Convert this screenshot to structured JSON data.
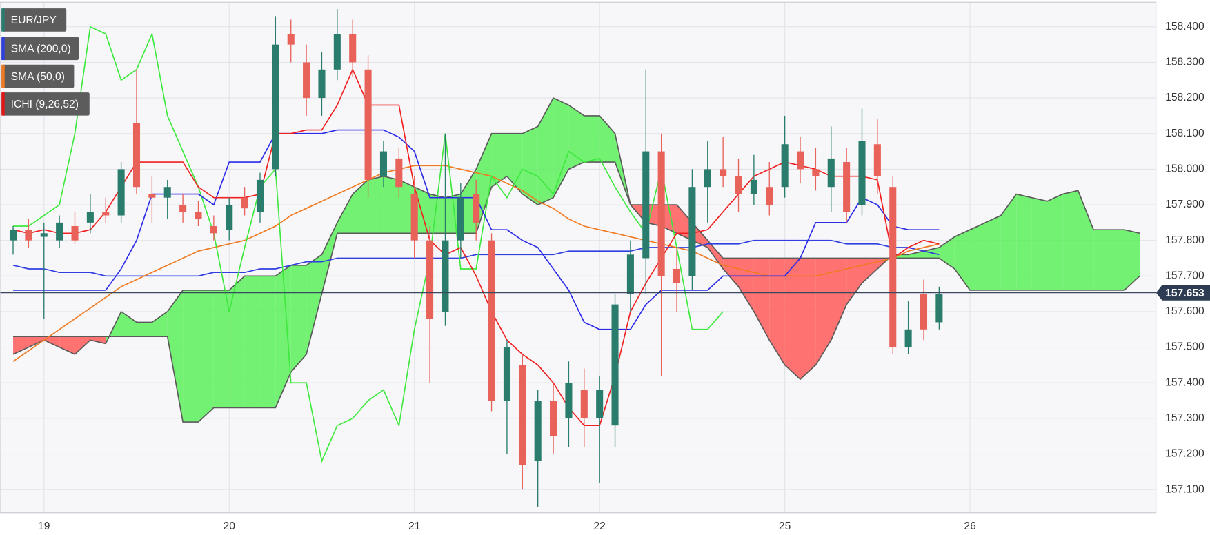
{
  "chart_data": {
    "type": "candlestick",
    "symbol": "EUR/JPY",
    "up_color": "#2a7d6d",
    "down_color": "#e8625a",
    "categories": [
      null,
      null,
      "19",
      null,
      null,
      null,
      null,
      null,
      null,
      null,
      null,
      null,
      null,
      null,
      "20",
      null,
      null,
      null,
      null,
      null,
      null,
      null,
      null,
      null,
      null,
      null,
      "21",
      null,
      null,
      null,
      null,
      null,
      null,
      null,
      null,
      null,
      null,
      null,
      "22",
      null,
      null,
      null,
      null,
      null,
      null,
      null,
      null,
      null,
      null,
      null,
      "25",
      null,
      null,
      null,
      null,
      null,
      null,
      null,
      null,
      null,
      null,
      null,
      "26",
      null,
      null,
      null,
      null,
      null,
      null,
      null,
      null,
      null,
      null,
      null,
      null
    ],
    "open": [
      157.8,
      157.83,
      157.81,
      157.8,
      157.84,
      157.85,
      157.88,
      157.87,
      158.13,
      157.93,
      157.92,
      157.9,
      157.88,
      157.84,
      157.83,
      157.92,
      157.88,
      158.0,
      158.38,
      158.3,
      158.2,
      158.28,
      158.38,
      158.28,
      157.98,
      158.03,
      157.93,
      157.8,
      157.6,
      157.8,
      157.93,
      157.8,
      157.35,
      157.45,
      157.18,
      157.35,
      157.3,
      157.38,
      157.3,
      157.28,
      157.65,
      157.75,
      158.05,
      157.72,
      157.7,
      157.95,
      158.0,
      157.98,
      157.93,
      157.95,
      157.95,
      158.05,
      158.0,
      157.95,
      158.02,
      157.9,
      158.07,
      157.95,
      157.5,
      157.65,
      157.57,
      null,
      null,
      null,
      null,
      null,
      null,
      null,
      null,
      null,
      null,
      null,
      null,
      null,
      null
    ],
    "high": [
      157.84,
      157.86,
      157.85,
      157.87,
      157.88,
      157.93,
      157.92,
      158.02,
      158.28,
      157.98,
      157.97,
      157.93,
      157.91,
      157.87,
      157.92,
      157.95,
      157.99,
      158.43,
      158.42,
      158.35,
      158.33,
      158.45,
      158.42,
      158.32,
      158.08,
      158.06,
      157.98,
      157.84,
      158.1,
      157.96,
      157.97,
      157.82,
      157.52,
      157.48,
      157.38,
      157.4,
      157.46,
      157.44,
      157.42,
      157.65,
      157.8,
      158.28,
      158.1,
      157.78,
      158.0,
      158.08,
      158.09,
      158.03,
      158.04,
      158.02,
      158.15,
      158.09,
      158.06,
      158.12,
      158.06,
      158.17,
      158.14,
      157.98,
      157.63,
      157.69,
      157.67,
      null,
      null,
      null,
      null,
      null,
      null,
      null,
      null,
      null,
      null,
      null,
      null,
      null,
      null
    ],
    "low": [
      157.76,
      157.78,
      157.58,
      157.78,
      157.79,
      157.82,
      157.85,
      157.85,
      157.93,
      157.85,
      157.86,
      157.85,
      157.84,
      157.8,
      157.8,
      157.87,
      157.85,
      157.98,
      158.3,
      158.15,
      158.15,
      158.25,
      158.26,
      157.92,
      157.95,
      157.92,
      157.75,
      157.4,
      157.56,
      157.75,
      157.8,
      157.32,
      157.2,
      157.1,
      157.05,
      157.2,
      157.22,
      157.22,
      157.12,
      157.22,
      157.6,
      157.65,
      157.42,
      157.6,
      157.66,
      157.85,
      157.95,
      157.88,
      157.9,
      157.87,
      157.92,
      157.96,
      157.94,
      157.88,
      157.85,
      157.87,
      157.93,
      157.48,
      157.48,
      157.52,
      157.55,
      null,
      null,
      null,
      null,
      null,
      null,
      null,
      null,
      null,
      null,
      null,
      null,
      null,
      null
    ],
    "close": [
      157.83,
      157.8,
      157.82,
      157.85,
      157.8,
      157.88,
      157.87,
      158.0,
      157.95,
      157.92,
      157.95,
      157.88,
      157.86,
      157.82,
      157.9,
      157.89,
      157.97,
      158.35,
      158.35,
      158.2,
      158.28,
      158.38,
      158.3,
      157.97,
      158.05,
      157.95,
      157.8,
      157.58,
      157.8,
      157.92,
      157.85,
      157.35,
      157.5,
      157.17,
      157.35,
      157.25,
      157.4,
      157.3,
      157.38,
      157.62,
      157.76,
      158.05,
      157.7,
      157.68,
      157.95,
      158.0,
      157.98,
      157.93,
      157.97,
      157.9,
      158.07,
      158.0,
      157.98,
      158.03,
      157.88,
      158.08,
      157.98,
      157.5,
      157.55,
      157.55,
      157.65,
      null,
      null,
      null,
      null,
      null,
      null,
      null,
      null,
      null,
      null,
      null,
      null,
      null,
      null
    ],
    "series": [
      {
        "name": "SMA (200,0)",
        "color": "#2f3fe0",
        "values": [
          157.73,
          157.72,
          157.72,
          157.71,
          157.71,
          157.71,
          157.7,
          157.7,
          157.7,
          157.7,
          157.7,
          157.7,
          157.7,
          157.71,
          157.71,
          157.71,
          157.72,
          157.72,
          157.73,
          157.74,
          157.74,
          157.75,
          157.75,
          157.75,
          157.75,
          157.75,
          157.75,
          157.75,
          157.75,
          157.75,
          157.76,
          157.76,
          157.76,
          157.76,
          157.76,
          157.76,
          157.77,
          157.77,
          157.77,
          157.77,
          157.77,
          157.78,
          157.78,
          157.78,
          157.78,
          157.79,
          157.79,
          157.79,
          157.8,
          157.8,
          157.8,
          157.8,
          157.8,
          157.8,
          157.79,
          157.79,
          157.79,
          157.78,
          157.78,
          157.77,
          157.76,
          null,
          null,
          null,
          null,
          null,
          null,
          null,
          null,
          null,
          null,
          null,
          null,
          null,
          null
        ]
      },
      {
        "name": "SMA (50,0)",
        "color": "#f07a22",
        "values": [
          157.46,
          157.49,
          157.52,
          157.55,
          157.58,
          157.61,
          157.64,
          157.67,
          157.69,
          157.71,
          157.73,
          157.75,
          157.77,
          157.78,
          157.79,
          157.8,
          157.82,
          157.84,
          157.87,
          157.89,
          157.91,
          157.93,
          157.95,
          157.97,
          157.99,
          158.0,
          158.01,
          158.01,
          158.01,
          158.0,
          157.99,
          157.98,
          157.96,
          157.94,
          157.91,
          157.89,
          157.86,
          157.84,
          157.83,
          157.82,
          157.81,
          157.8,
          157.79,
          157.78,
          157.77,
          157.75,
          157.73,
          157.72,
          157.71,
          157.7,
          157.7,
          157.7,
          157.7,
          157.71,
          157.72,
          157.73,
          157.74,
          157.75,
          157.77,
          157.78,
          157.79,
          null,
          null,
          null,
          null,
          null,
          null,
          null,
          null,
          null,
          null,
          null,
          null,
          null,
          null
        ]
      }
    ],
    "ichimoku": {
      "name": "ICHI (9,26,52)",
      "color": "#e01818",
      "cloud_up_color": "#5cf05c",
      "cloud_down_color": "#ff5a5a",
      "tenkan": {
        "color": "#f02020",
        "values": [
          157.83,
          157.82,
          157.83,
          157.82,
          157.82,
          157.83,
          157.88,
          157.95,
          158.02,
          158.02,
          158.02,
          158.02,
          157.95,
          157.92,
          157.92,
          157.92,
          157.93,
          158.1,
          158.1,
          158.11,
          158.11,
          158.18,
          158.28,
          158.18,
          158.18,
          158.18,
          157.95,
          157.8,
          157.76,
          157.78,
          157.7,
          157.6,
          157.52,
          157.48,
          157.45,
          157.4,
          157.33,
          157.28,
          157.28,
          157.42,
          157.6,
          157.68,
          157.75,
          157.82,
          157.82,
          157.83,
          157.88,
          157.93,
          157.98,
          158.0,
          158.02,
          158.01,
          158.0,
          157.98,
          157.98,
          157.98,
          157.97,
          157.75,
          157.78,
          157.8,
          157.79,
          null,
          null,
          null,
          null,
          null,
          null,
          null,
          null,
          null,
          null,
          null,
          null,
          null,
          null
        ]
      },
      "kijun": {
        "color": "#2a2ae8",
        "values": [
          157.66,
          157.66,
          157.66,
          157.66,
          157.66,
          157.66,
          157.66,
          157.72,
          157.8,
          157.93,
          157.93,
          157.93,
          157.93,
          157.9,
          158.02,
          158.02,
          158.02,
          158.1,
          158.1,
          158.1,
          158.1,
          158.11,
          158.11,
          158.11,
          158.11,
          158.09,
          158.05,
          157.92,
          157.92,
          157.92,
          157.92,
          157.83,
          157.83,
          157.8,
          157.78,
          157.72,
          157.66,
          157.57,
          157.55,
          157.55,
          157.55,
          157.62,
          157.66,
          157.66,
          157.66,
          157.66,
          157.7,
          157.7,
          157.7,
          157.7,
          157.7,
          157.75,
          157.85,
          157.85,
          157.85,
          157.92,
          157.9,
          157.84,
          157.83,
          157.83,
          157.83,
          null,
          null,
          null,
          null,
          null,
          null,
          null,
          null,
          null,
          null,
          null,
          null,
          null,
          null
        ]
      },
      "chikou": {
        "color": "#3ee83e",
        "values": [
          157.84,
          157.84,
          157.87,
          157.9,
          158.1,
          158.4,
          158.38,
          158.25,
          158.28,
          158.38,
          158.15,
          158.05,
          157.95,
          157.82,
          157.6,
          157.78,
          157.95,
          158.0,
          157.4,
          157.4,
          157.18,
          157.28,
          157.3,
          157.35,
          157.38,
          157.28,
          157.55,
          157.75,
          158.1,
          157.72,
          157.72,
          157.98,
          157.92,
          158.0,
          157.98,
          157.93,
          158.05,
          158.02,
          158.03,
          157.95,
          157.88,
          157.82,
          158.0,
          157.78,
          157.55,
          157.55,
          157.6,
          null,
          null,
          null,
          null,
          null,
          null,
          null,
          null,
          null,
          null,
          null,
          null,
          null,
          null,
          null,
          null,
          null,
          null,
          null,
          null,
          null,
          null,
          null,
          null,
          null,
          null,
          null,
          null
        ]
      },
      "span_a": {
        "color": "#5a5a5a",
        "values": [
          157.48,
          157.5,
          157.52,
          157.5,
          157.48,
          157.52,
          157.51,
          157.6,
          157.57,
          157.57,
          157.6,
          157.66,
          157.66,
          157.66,
          157.66,
          157.7,
          157.7,
          157.7,
          157.73,
          157.73,
          157.76,
          157.85,
          157.93,
          157.97,
          157.98,
          157.97,
          157.95,
          157.93,
          157.92,
          157.93,
          158.0,
          158.1,
          158.1,
          158.1,
          158.12,
          158.2,
          158.18,
          158.15,
          158.15,
          158.1,
          157.9,
          157.85,
          157.84,
          157.82,
          157.8,
          157.78,
          157.72,
          157.67,
          157.6,
          157.52,
          157.45,
          157.41,
          157.45,
          157.52,
          157.62,
          157.68,
          157.72,
          157.76,
          157.76,
          157.77,
          157.78,
          157.81,
          157.83,
          157.85,
          157.87,
          157.93,
          157.92,
          157.91,
          157.93,
          157.94,
          157.83,
          157.83,
          157.83,
          157.82,
          null
        ]
      },
      "span_b": {
        "color": "#5a5a5a",
        "values": [
          157.53,
          157.53,
          157.53,
          157.53,
          157.53,
          157.53,
          157.53,
          157.53,
          157.53,
          157.53,
          157.53,
          157.29,
          157.29,
          157.33,
          157.33,
          157.33,
          157.33,
          157.33,
          157.43,
          157.48,
          157.65,
          157.82,
          157.82,
          157.82,
          157.82,
          157.82,
          157.82,
          157.82,
          157.82,
          157.82,
          157.82,
          157.95,
          157.98,
          157.93,
          157.9,
          157.92,
          158.0,
          158.02,
          158.02,
          158.02,
          157.9,
          157.9,
          157.9,
          157.9,
          157.85,
          157.8,
          157.75,
          157.75,
          157.75,
          157.75,
          157.75,
          157.75,
          157.75,
          157.75,
          157.75,
          157.75,
          157.75,
          157.75,
          157.75,
          157.75,
          157.75,
          157.72,
          157.66,
          157.66,
          157.66,
          157.66,
          157.66,
          157.66,
          157.66,
          157.66,
          157.66,
          157.66,
          157.66,
          157.7,
          null
        ]
      }
    },
    "current_price": {
      "value": 157.653,
      "label": "157.653"
    },
    "ylim": [
      157.035,
      158.469
    ],
    "yticks": [
      {
        "value": 157.1,
        "label": "157.100"
      },
      {
        "value": 157.2,
        "label": "157.200"
      },
      {
        "value": 157.3,
        "label": "157.300"
      },
      {
        "value": 157.4,
        "label": "157.400"
      },
      {
        "value": 157.5,
        "label": "157.500"
      },
      {
        "value": 157.6,
        "label": "157.600"
      },
      {
        "value": 157.7,
        "label": "157.700"
      },
      {
        "value": 157.8,
        "label": "157.800"
      },
      {
        "value": 157.9,
        "label": "157.900"
      },
      {
        "value": 158.0,
        "label": "158.000"
      },
      {
        "value": 158.1,
        "label": "158.100"
      },
      {
        "value": 158.2,
        "label": "158.200"
      },
      {
        "value": 158.3,
        "label": "158.300"
      },
      {
        "value": 158.4,
        "label": "158.400"
      }
    ],
    "grid": true
  }
}
